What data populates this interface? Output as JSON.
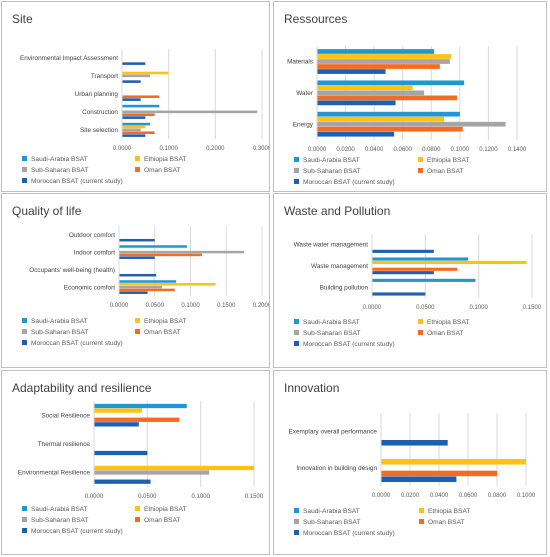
{
  "colors": {
    "saudi": "#2196d3",
    "ethiopia": "#ffc20e",
    "subsaharan": "#a5a5a5",
    "oman": "#f36c21",
    "moroccan": "#1f5fb0"
  },
  "legend": [
    "Saudi-Arabia BSAT",
    "Ethiopia BSAT",
    "Sub-Saharan BSAT",
    "Oman BSAT",
    "Moroccan BSAT (current study)"
  ],
  "chart_data": [
    {
      "type": "bar",
      "orientation": "horizontal",
      "title": "Site",
      "categories": [
        "Site selection",
        "Construction",
        "Urban planning",
        "Transport",
        "Environmental Impact Assessment"
      ],
      "ticks": [
        "0.0000",
        "0.1000",
        "0.2000",
        "0.3000"
      ],
      "xlim": [
        0,
        0.3
      ],
      "grid": true,
      "legend_position": "bottom",
      "series": [
        {
          "name": "Saudi-Arabia BSAT",
          "values": [
            0.06,
            0.08,
            0,
            0,
            0
          ]
        },
        {
          "name": "Ethiopia BSAT",
          "values": [
            0.05,
            0,
            0,
            0.1,
            0
          ]
        },
        {
          "name": "Sub-Saharan BSAT",
          "values": [
            0.04,
            0.29,
            0,
            0.06,
            0
          ]
        },
        {
          "name": "Oman BSAT",
          "values": [
            0.07,
            0.07,
            0.08,
            0,
            0
          ]
        },
        {
          "name": "Moroccan BSAT (current study)",
          "values": [
            0.05,
            0.05,
            0.04,
            0.04,
            0.05
          ]
        }
      ]
    },
    {
      "type": "bar",
      "orientation": "horizontal",
      "title": "Ressources",
      "categories": [
        "Energy",
        "Water",
        "Materials"
      ],
      "ticks": [
        "0.0000",
        "0.0200",
        "0.0400",
        "0.0600",
        "0.0800",
        "0.1000",
        "0.1200",
        "0.1400"
      ],
      "xlim": [
        0,
        0.14
      ],
      "grid": true,
      "legend_position": "bottom",
      "series": [
        {
          "name": "Saudi-Arabia BSAT",
          "values": [
            0.1,
            0.103,
            0.082
          ]
        },
        {
          "name": "Ethiopia BSAT",
          "values": [
            0.089,
            0.067,
            0.094
          ]
        },
        {
          "name": "Sub-Saharan BSAT",
          "values": [
            0.132,
            0.075,
            0.093
          ]
        },
        {
          "name": "Oman BSAT",
          "values": [
            0.102,
            0.098,
            0.086
          ]
        },
        {
          "name": "Moroccan BSAT (current study)",
          "values": [
            0.054,
            0.055,
            0.048
          ]
        }
      ]
    },
    {
      "type": "bar",
      "orientation": "horizontal",
      "title": "Quality of life",
      "categories": [
        "Economic comfort",
        "Occupants' well-being (health)",
        "Indoor comfort",
        "Outdoor comfort"
      ],
      "ticks": [
        "0.0000",
        "0.0500",
        "0.1000",
        "0.1500",
        "0.2000"
      ],
      "xlim": [
        0,
        0.2
      ],
      "grid": true,
      "legend_position": "bottom",
      "series": [
        {
          "name": "Saudi-Arabia BSAT",
          "values": [
            0.08,
            0,
            0.095,
            0
          ]
        },
        {
          "name": "Ethiopia BSAT",
          "values": [
            0.135,
            0,
            0,
            0
          ]
        },
        {
          "name": "Sub-Saharan BSAT",
          "values": [
            0.06,
            0,
            0.175,
            0
          ]
        },
        {
          "name": "Oman BSAT",
          "values": [
            0.078,
            0,
            0.116,
            0
          ]
        },
        {
          "name": "Moroccan BSAT (current study)",
          "values": [
            0.04,
            0.052,
            0.05,
            0.05
          ]
        }
      ]
    },
    {
      "type": "bar",
      "orientation": "horizontal",
      "title": "Waste and Pollution",
      "categories": [
        "Building pollution",
        "Waste management",
        "Waste water management"
      ],
      "ticks": [
        "0.0000",
        "0.0500",
        "0.1000",
        "0.1500"
      ],
      "xlim": [
        0,
        0.15
      ],
      "grid": true,
      "legend_position": "bottom",
      "series": [
        {
          "name": "Saudi-Arabia BSAT",
          "values": [
            0.097,
            0.09,
            0
          ]
        },
        {
          "name": "Ethiopia BSAT",
          "values": [
            0,
            0.145,
            0
          ]
        },
        {
          "name": "Sub-Saharan BSAT",
          "values": [
            0,
            0,
            0
          ]
        },
        {
          "name": "Oman BSAT",
          "values": [
            0,
            0.08,
            0
          ]
        },
        {
          "name": "Moroccan BSAT (current study)",
          "values": [
            0.05,
            0.058,
            0.058
          ]
        }
      ]
    },
    {
      "type": "bar",
      "orientation": "horizontal",
      "title": "Adaptability and resilience",
      "categories": [
        "Environmental Resilience",
        "Thermal resilience",
        "Social Resilience"
      ],
      "ticks": [
        "0.0000",
        "0.0500",
        "0.1000",
        "0.1500"
      ],
      "xlim": [
        0,
        0.15
      ],
      "grid": true,
      "legend_position": "bottom",
      "series": [
        {
          "name": "Saudi-Arabia BSAT",
          "values": [
            0,
            0,
            0.087
          ]
        },
        {
          "name": "Ethiopia BSAT",
          "values": [
            0.15,
            0,
            0.045
          ]
        },
        {
          "name": "Sub-Saharan BSAT",
          "values": [
            0.108,
            0,
            0
          ]
        },
        {
          "name": "Oman BSAT",
          "values": [
            0,
            0,
            0.08
          ]
        },
        {
          "name": "Moroccan BSAT (current study)",
          "values": [
            0.053,
            0.05,
            0.042
          ]
        }
      ]
    },
    {
      "type": "bar",
      "orientation": "horizontal",
      "title": "Innovation",
      "categories": [
        "Innovation in building design",
        "Exemplary overall performance"
      ],
      "ticks": [
        "0.0000",
        "0.0200",
        "0.0400",
        "0.0600",
        "0.0800",
        "0.1000"
      ],
      "xlim": [
        0,
        0.1
      ],
      "grid": true,
      "legend_position": "bottom",
      "series": [
        {
          "name": "Saudi-Arabia BSAT",
          "values": [
            0,
            0
          ]
        },
        {
          "name": "Ethiopia BSAT",
          "values": [
            0.1,
            0
          ]
        },
        {
          "name": "Sub-Saharan BSAT",
          "values": [
            0,
            0
          ]
        },
        {
          "name": "Oman BSAT",
          "values": [
            0.08,
            0
          ]
        },
        {
          "name": "Moroccan BSAT (current study)",
          "values": [
            0.052,
            0.046
          ]
        }
      ]
    }
  ]
}
